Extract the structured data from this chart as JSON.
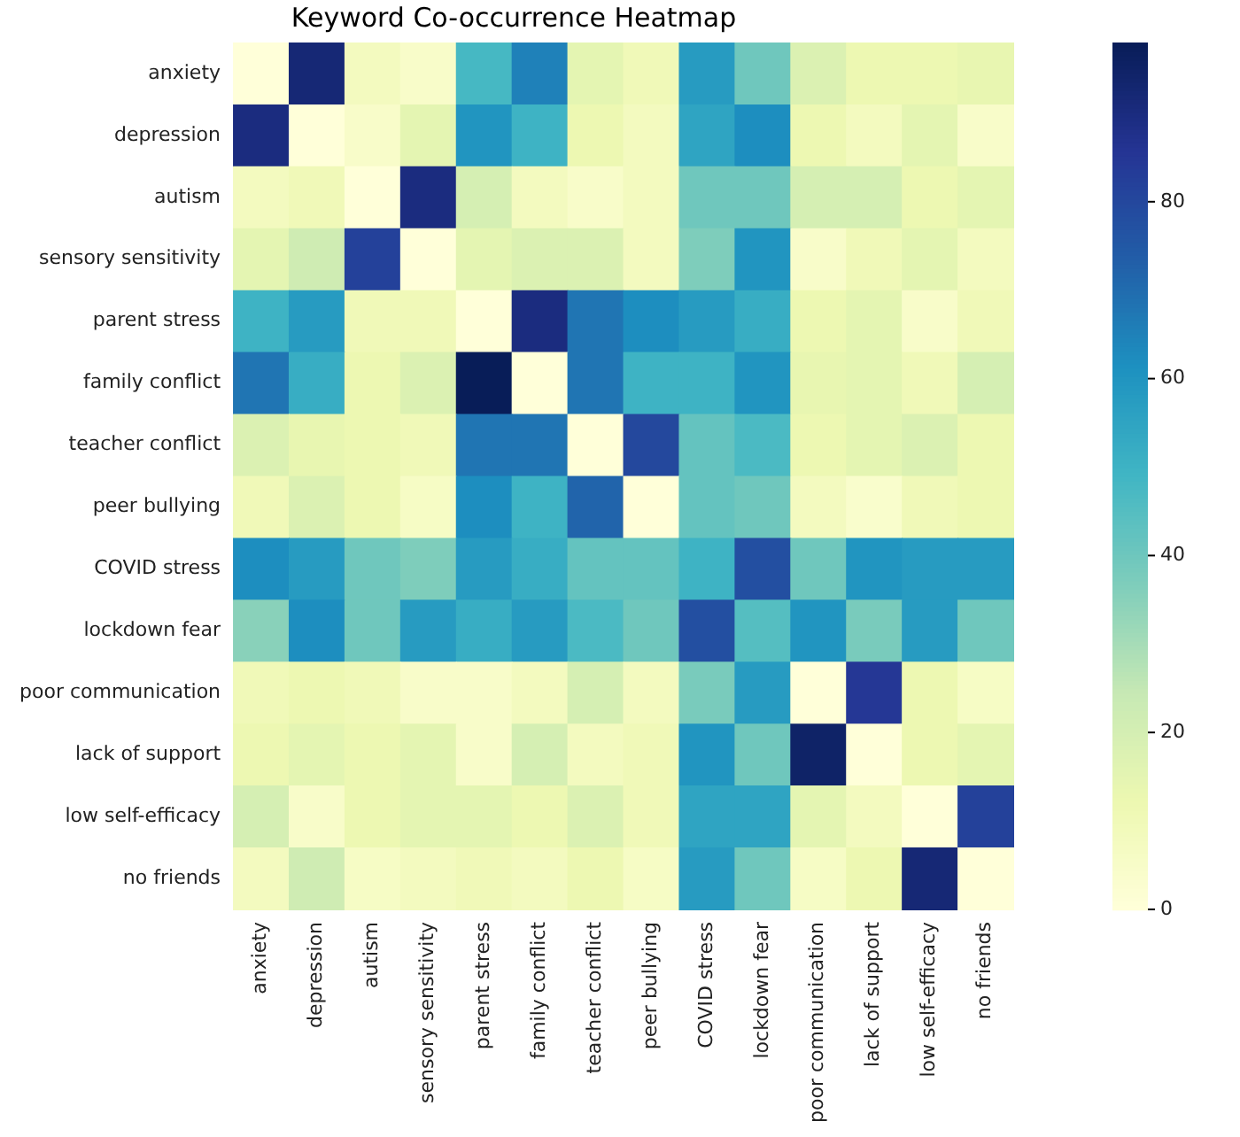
{
  "chart_data": {
    "type": "heatmap",
    "title": "Keyword Co-occurrence Heatmap",
    "categories": [
      "anxiety",
      "depression",
      "autism",
      "sensory sensitivity",
      "parent stress",
      "family conflict",
      "teacher conflict",
      "peer bullying",
      "COVID stress",
      "lockdown fear",
      "poor communication",
      "lack of support",
      "low self-efficacy",
      "no friends"
    ],
    "y_categories": [
      "anxiety",
      "depression",
      "autism",
      "sensory sensitivity",
      "parent stress",
      "family conflict",
      "teacher conflict",
      "peer bullying",
      "COVID stress",
      "lockdown fear",
      "poor communication",
      "lack of support",
      "low self-efficacy",
      "no friends"
    ],
    "cells": [
      [
        0,
        92,
        8,
        5,
        48,
        65,
        15,
        10,
        58,
        40,
        18,
        12,
        12,
        14
      ],
      [
        90,
        0,
        5,
        15,
        60,
        50,
        12,
        8,
        55,
        62,
        12,
        8,
        15,
        5
      ],
      [
        8,
        10,
        0,
        90,
        20,
        8,
        5,
        8,
        40,
        40,
        20,
        20,
        12,
        15
      ],
      [
        15,
        22,
        82,
        0,
        15,
        18,
        18,
        8,
        37,
        60,
        5,
        10,
        15,
        8
      ],
      [
        50,
        58,
        10,
        10,
        0,
        90,
        68,
        62,
        58,
        52,
        12,
        15,
        5,
        10
      ],
      [
        68,
        52,
        12,
        18,
        98,
        0,
        68,
        50,
        50,
        60,
        14,
        15,
        10,
        20
      ],
      [
        18,
        14,
        12,
        10,
        68,
        68,
        0,
        80,
        42,
        47,
        12,
        15,
        18,
        12
      ],
      [
        10,
        18,
        12,
        6,
        62,
        50,
        72,
        0,
        42,
        40,
        8,
        4,
        10,
        12
      ],
      [
        62,
        58,
        40,
        37,
        58,
        52,
        42,
        42,
        50,
        78,
        40,
        60,
        58,
        58
      ],
      [
        35,
        62,
        40,
        58,
        52,
        58,
        47,
        40,
        78,
        45,
        60,
        38,
        58,
        40
      ],
      [
        10,
        12,
        10,
        5,
        5,
        8,
        20,
        8,
        38,
        58,
        0,
        85,
        12,
        6
      ],
      [
        12,
        15,
        12,
        15,
        5,
        20,
        8,
        10,
        60,
        40,
        95,
        0,
        12,
        15
      ],
      [
        20,
        5,
        12,
        15,
        15,
        12,
        18,
        10,
        55,
        55,
        15,
        8,
        0,
        82
      ],
      [
        8,
        22,
        6,
        8,
        10,
        8,
        12,
        6,
        58,
        40,
        6,
        12,
        92,
        0
      ]
    ],
    "clim": [
      0,
      98
    ],
    "cticks": [
      0,
      20,
      40,
      60,
      80
    ]
  }
}
